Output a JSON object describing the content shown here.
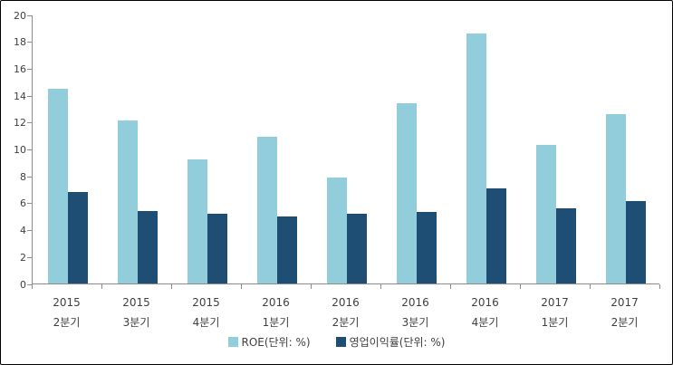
{
  "chart_data": {
    "type": "bar",
    "title": "",
    "categories": [
      "2015 2분기",
      "2015 3분기",
      "2015 4분기",
      "2016 1분기",
      "2016 2분기",
      "2016 3분기",
      "2016 4분기",
      "2017 1분기",
      "2017 2분기"
    ],
    "series": [
      {
        "name": "ROE(단위: %)",
        "color": "#92CDDC",
        "values": [
          14.5,
          12.1,
          9.2,
          10.9,
          7.9,
          13.4,
          18.6,
          10.3,
          12.6
        ]
      },
      {
        "name": "영업이익률(단위: %)",
        "color": "#1F4E74",
        "values": [
          6.8,
          5.4,
          5.2,
          5.0,
          5.2,
          5.3,
          7.1,
          5.6,
          6.1
        ]
      }
    ],
    "xlabel": "",
    "ylabel": "",
    "ylim": [
      0,
      20
    ],
    "ytick_step": 2,
    "ytick_labels": [
      "0",
      "2",
      "4",
      "6",
      "8",
      "10",
      "12",
      "14",
      "16",
      "18",
      "20"
    ],
    "grid": false,
    "legend_position": "bottom"
  },
  "colors": {
    "axis": "#8C8C8C",
    "text": "#404040",
    "border": "#000000",
    "background": "#FFFFFF",
    "series_roe": "#92CDDC",
    "series_margin": "#1F4E74"
  }
}
